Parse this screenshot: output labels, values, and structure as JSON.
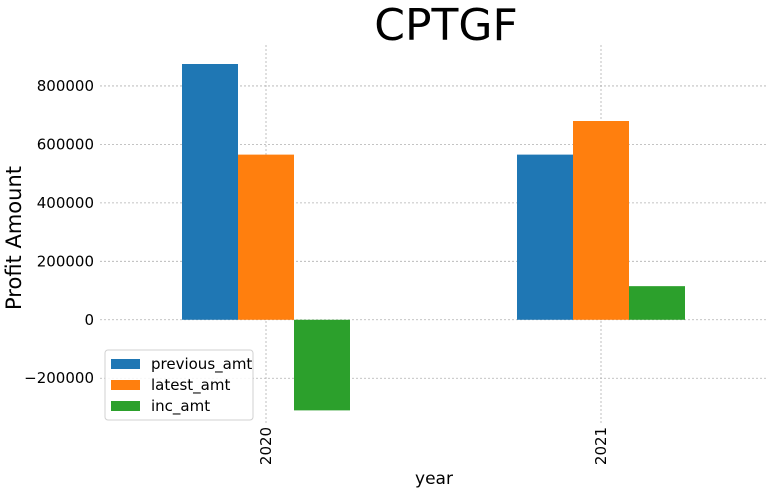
{
  "chart_data": {
    "type": "bar",
    "title": "CPTGF",
    "xlabel": "year",
    "ylabel": "Profit Amount",
    "categories": [
      "2020",
      "2021"
    ],
    "series": [
      {
        "name": "previous_amt",
        "color": "#1f77b4",
        "values": [
          875000,
          565000
        ]
      },
      {
        "name": "latest_amt",
        "color": "#ff7f0e",
        "values": [
          565000,
          680000
        ]
      },
      {
        "name": "inc_amt",
        "color": "#2ca02c",
        "values": [
          -310000,
          115000
        ]
      }
    ],
    "ylim": [
      -360000,
      940000
    ],
    "yticks": [
      -200000,
      0,
      200000,
      400000,
      600000,
      800000
    ],
    "ytick_labels": [
      "−200000",
      "0",
      "200000",
      "400000",
      "600000",
      "800000"
    ],
    "grid": true,
    "legend_position": "lower-left"
  }
}
